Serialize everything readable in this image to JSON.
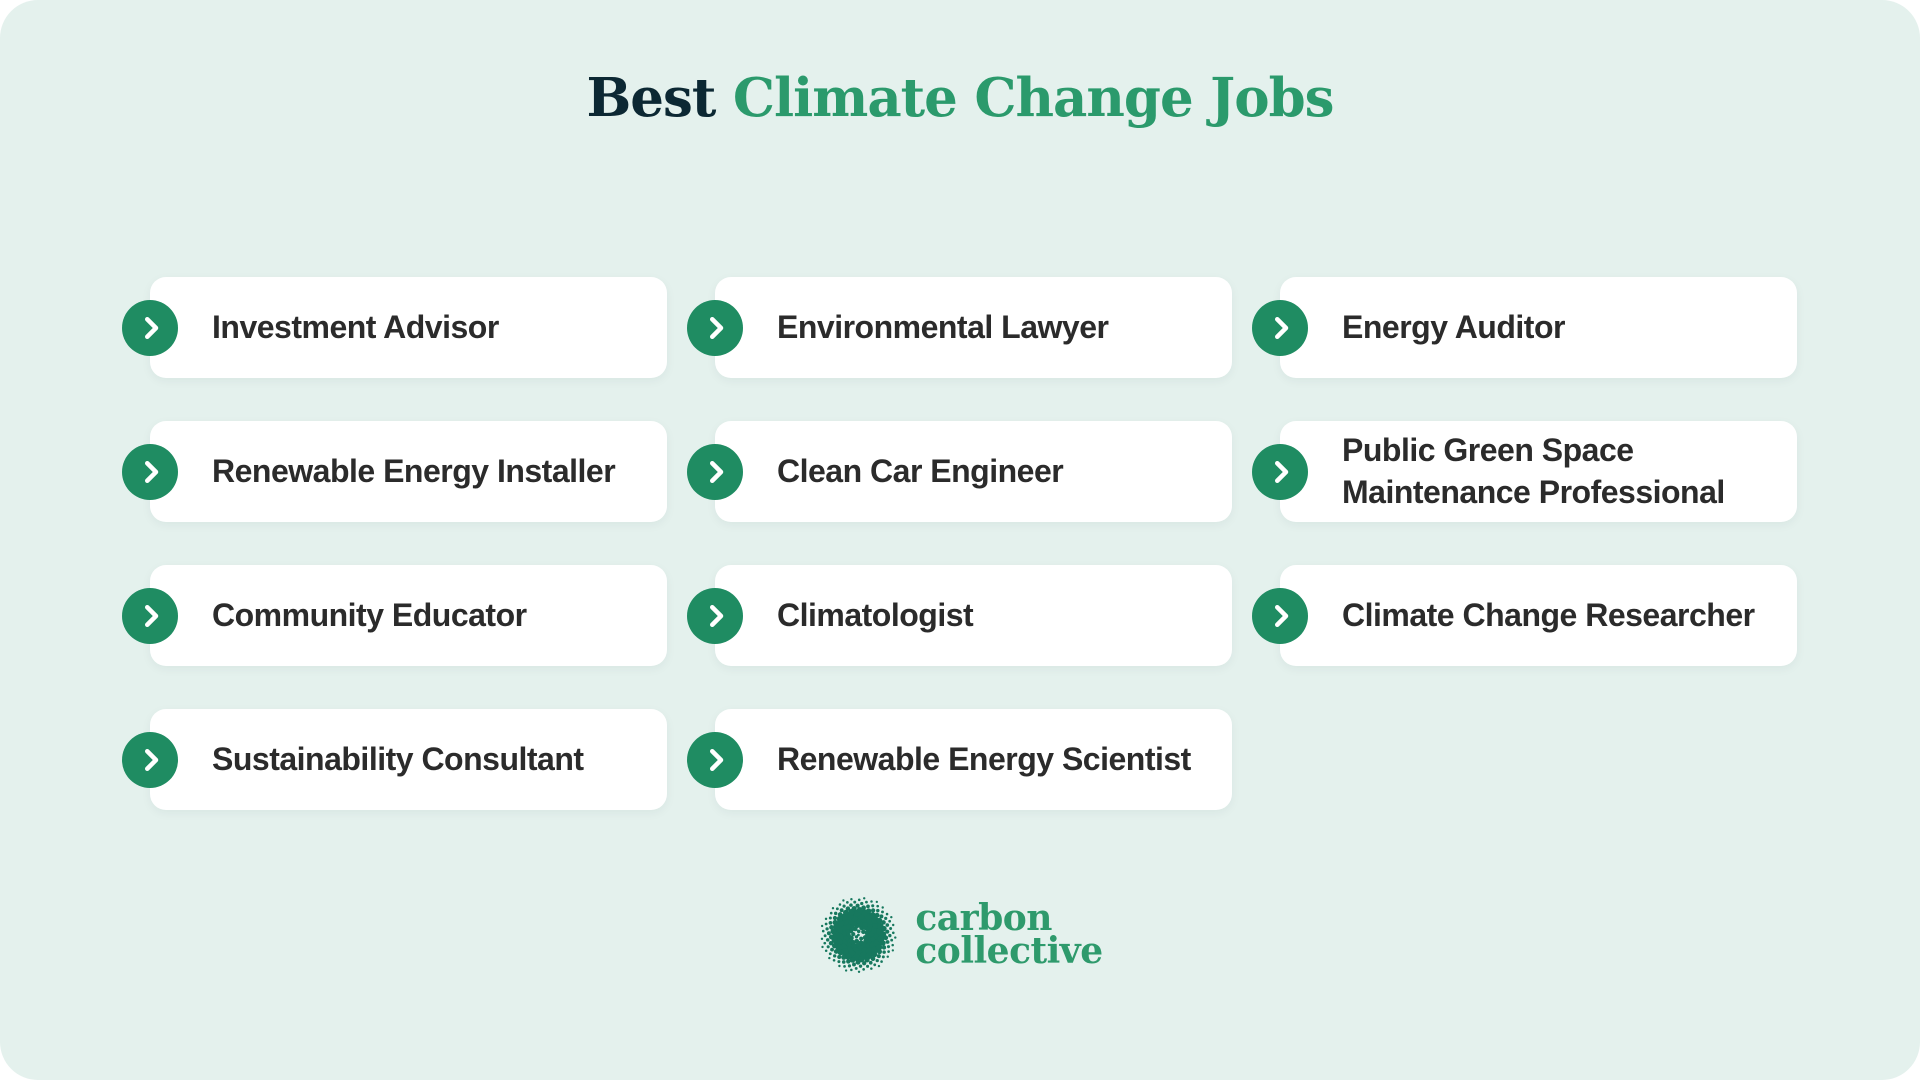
{
  "title": {
    "prefix": "Best",
    "highlight": "Climate Change Jobs"
  },
  "jobs": [
    {
      "label": "Investment Advisor"
    },
    {
      "label": "Environmental Lawyer"
    },
    {
      "label": "Energy Auditor"
    },
    {
      "label": "Renewable Energy Installer"
    },
    {
      "label": "Clean Car Engineer"
    },
    {
      "label": "Public Green Space Maintenance Professional"
    },
    {
      "label": "Community Educator"
    },
    {
      "label": "Climatologist"
    },
    {
      "label": "Climate Change Researcher"
    },
    {
      "label": "Sustainability Consultant"
    },
    {
      "label": "Renewable Energy Scientist"
    }
  ],
  "logo": {
    "line1": "carbon",
    "line2": "collective"
  },
  "icons": {
    "card_icon": "chevron-right-icon",
    "logo_icon": "dot-sphere-icon"
  },
  "colors": {
    "background_mint": "#E4F1ED",
    "card_white": "#FFFFFF",
    "title_dark": "#0C2833",
    "title_green": "#2B9A6C",
    "badge_green": "#1F8C62",
    "card_text": "#2B2B2B",
    "logo_text_green": "#2E9A6C",
    "logo_dots_green": "#17785E"
  }
}
